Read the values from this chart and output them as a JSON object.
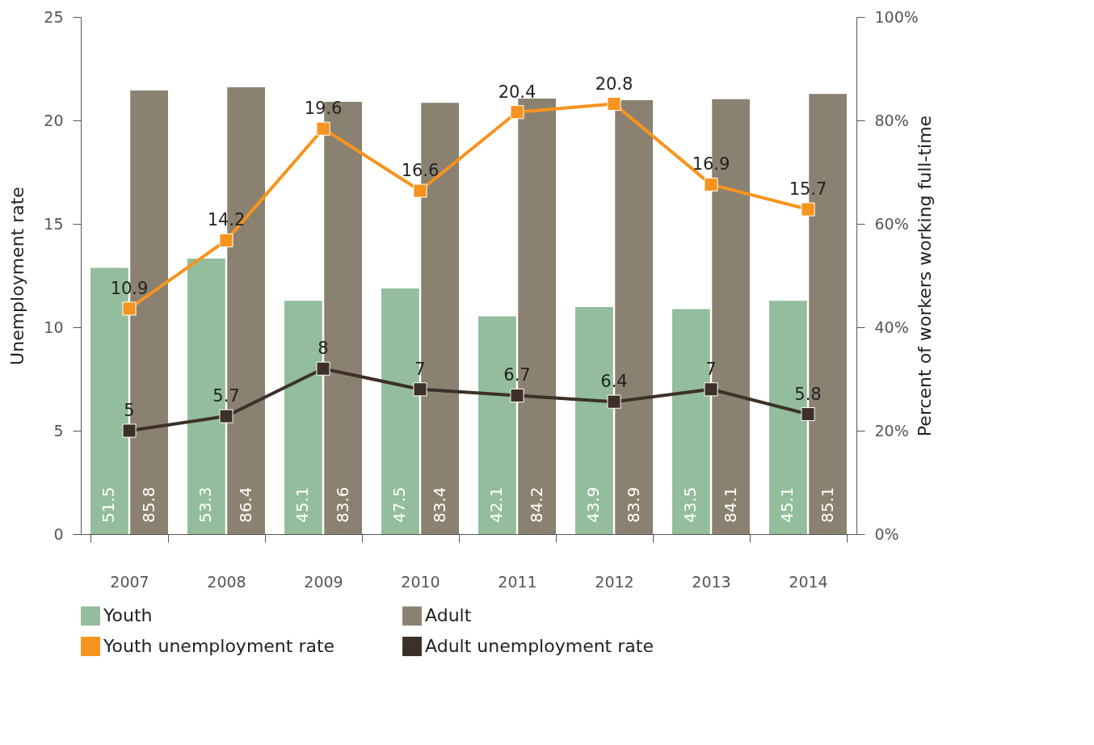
{
  "chart_data": {
    "type": "bar",
    "categories": [
      "2007",
      "2008",
      "2009",
      "2010",
      "2011",
      "2012",
      "2013",
      "2014"
    ],
    "series": [
      {
        "name": "Youth",
        "type": "bar",
        "axis": "y2",
        "color": "#93bd9c",
        "values": [
          51.5,
          53.3,
          45.1,
          47.5,
          42.1,
          43.9,
          43.5,
          45.1
        ]
      },
      {
        "name": "Adult",
        "type": "bar",
        "axis": "y2",
        "color": "#8b8170",
        "values": [
          85.8,
          86.4,
          83.6,
          83.4,
          84.2,
          83.9,
          84.1,
          85.1
        ]
      },
      {
        "name": "Youth unemployment rate",
        "type": "line",
        "color": "#f7941d",
        "values": [
          10.9,
          14.2,
          19.6,
          16.6,
          20.4,
          20.8,
          16.9,
          15.7
        ]
      },
      {
        "name": "Adult unemployment rate",
        "type": "line",
        "color": "#3d3029",
        "values": [
          5,
          5.7,
          8,
          7,
          6.7,
          6.4,
          7,
          5.8
        ]
      }
    ],
    "ylabel": "Unemployment rate",
    "y2label": "Percent of workers working full-time",
    "ylim": [
      0,
      25
    ],
    "yticks": [
      0,
      5,
      10,
      15,
      20,
      25
    ],
    "y2lim": [
      0,
      100
    ],
    "y2ticks": [
      {
        "value": 0,
        "label": "0%"
      },
      {
        "value": 20,
        "label": "20%"
      },
      {
        "value": 40,
        "label": "40%"
      },
      {
        "value": 60,
        "label": "60%"
      },
      {
        "value": 80,
        "label": "80%"
      },
      {
        "value": 100,
        "label": "100%"
      }
    ],
    "data_labels": true,
    "marker": "square",
    "grid": false,
    "legend": "bottom"
  }
}
